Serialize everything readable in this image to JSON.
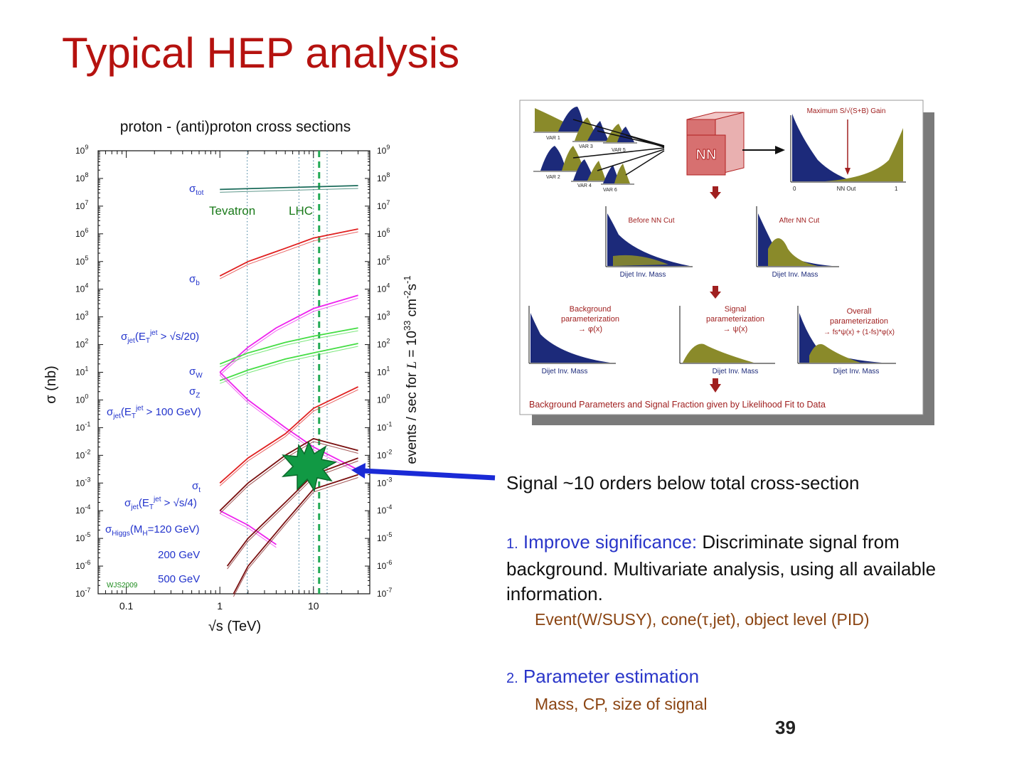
{
  "slide": {
    "title": "Typical HEP analysis",
    "page_number": "39"
  },
  "chart_data": {
    "type": "line",
    "title": "proton - (anti)proton cross sections",
    "xlabel": "√s (TeV)",
    "ylabel_left": "σ (nb)",
    "ylabel_right": "events / sec for L = 10^33 cm^-2 s^-1",
    "x_scale": "log",
    "y_scale": "log",
    "xlim": [
      0.05,
      40
    ],
    "ylim": [
      1e-07,
      1000000000.0
    ],
    "x_ticks": [
      "0.1",
      "1",
      "10"
    ],
    "y_ticks_left": [
      "10^9",
      "10^8",
      "10^7",
      "10^6",
      "10^5",
      "10^4",
      "10^3",
      "10^2",
      "10^1",
      "10^0",
      "10^-1",
      "10^-2",
      "10^-3",
      "10^-4",
      "10^-5",
      "10^-6",
      "10^-7"
    ],
    "y_ticks_right": [
      "10^9",
      "10^8",
      "10^7",
      "10^6",
      "10^5",
      "10^4",
      "10^3",
      "10^2",
      "10^1",
      "10^0",
      "10^-1",
      "10^-2",
      "10^-3",
      "10^-4",
      "10^-5",
      "10^-6",
      "10^-7"
    ],
    "region_labels": [
      "Tevatron",
      "LHC"
    ],
    "credit": "WJS2009",
    "series": [
      {
        "name": "σtot",
        "color": "#1a6b5a",
        "x": [
          1,
          30
        ],
        "y": [
          40000000.0,
          55000000.0
        ]
      },
      {
        "name": "σb",
        "color": "#e02020",
        "x": [
          1,
          2,
          5,
          10,
          30
        ],
        "y": [
          30000.0,
          100000.0,
          300000.0,
          700000.0,
          1500000.0
        ]
      },
      {
        "name": "σjet(ETjet > √s/20)",
        "color": "#ee22ee",
        "x": [
          1,
          2,
          4,
          10,
          30
        ],
        "y": [
          10.0,
          80.0,
          400.0,
          2000.0,
          6000.0
        ]
      },
      {
        "name": "σW",
        "color": "#44dd44",
        "x": [
          1,
          2,
          5,
          10,
          30
        ],
        "y": [
          20.0,
          50.0,
          120.0,
          200.0,
          400.0
        ]
      },
      {
        "name": "σZ",
        "color": "#44dd44",
        "x": [
          1,
          2,
          5,
          10,
          30
        ],
        "y": [
          5.0,
          12.0,
          30.0,
          50.0,
          110.0
        ]
      },
      {
        "name": "σjet(ETjet > 100 GeV)",
        "color": "#ee22ee",
        "x": [
          1,
          2,
          5,
          10,
          30
        ],
        "y": [
          10.0,
          1.0,
          0.1,
          0.02,
          0.003
        ]
      },
      {
        "name": "σt",
        "color": "#e02020",
        "x": [
          1,
          2,
          5,
          10,
          30
        ],
        "y": [
          0.001,
          0.008,
          0.06,
          0.5,
          3.0
        ]
      },
      {
        "name": "σjet(ETjet > √s/4)",
        "color": "#ee22ee",
        "x": [
          1,
          2,
          4
        ],
        "y": [
          0.0001,
          3e-05,
          6e-06
        ]
      },
      {
        "name": "σHiggs(MH=120 GeV)",
        "color": "#7a1010",
        "x": [
          1,
          2,
          5,
          10,
          30
        ],
        "y": [
          0.0001,
          0.001,
          0.01,
          0.04,
          0.015
        ]
      },
      {
        "name": "200 GeV",
        "color": "#7a1010",
        "x": [
          1.2,
          2,
          5,
          10,
          30
        ],
        "y": [
          1e-06,
          1e-05,
          0.0002,
          0.002,
          0.008
        ]
      },
      {
        "name": "500 GeV",
        "color": "#7a1010",
        "x": [
          1.4,
          2,
          5,
          10,
          30
        ],
        "y": [
          1e-07,
          1e-06,
          4e-05,
          0.0006,
          0.002
        ]
      }
    ],
    "labels": {
      "sigma_tot": "σtot",
      "sigma_b": "σb",
      "sigma_jet_sqrt20": "σjet(ETjet > √s/20)",
      "sigma_W": "σW",
      "sigma_Z": "σZ",
      "sigma_jet_100": "σjet(ETjet > 100 GeV)",
      "sigma_t": "σt",
      "sigma_jet_sqrt4": "σjet(ETjet > √s/4)",
      "sigma_higgs": "σHiggs(MH=120 GeV)",
      "higgs_200": "200 GeV",
      "higgs_500": "500 GeV"
    }
  },
  "nn_diagram": {
    "var_labels": [
      "VAR 1",
      "VAR 2",
      "VAR 3",
      "VAR 4",
      "VAR 5",
      "VAR 6"
    ],
    "nn_box": "NN",
    "gain_title": "Maximum S/√(S+B) Gain",
    "nn_out_axis": [
      "0",
      "NN Out",
      "1"
    ],
    "before_cut": "Before NN Cut",
    "after_cut": "After NN Cut",
    "dijet_label": "Dijet Inv. Mass",
    "bkg_param": [
      "Background",
      "parameterization",
      "→ φ(x)"
    ],
    "sig_param": [
      "Signal",
      "parameterization",
      "→ ψ(x)"
    ],
    "overall_param": [
      "Overall",
      "parameterization",
      "→ fs*ψ(x) + (1-fs)*φ(x)"
    ],
    "footer": "Background Parameters and Signal Fraction given by Likelihood Fit to Data",
    "colors": {
      "background": "#1c2a7a",
      "signal": "#8a8a2a",
      "accent": "#b22020"
    }
  },
  "text_block": {
    "signal_line": "Signal ~10 orders below total cross-section",
    "items": [
      {
        "number": "1.",
        "highlight": "Improve significance:",
        "text": " Discriminate signal from background. Multivariate analysis, using all available information.",
        "sub": "Event(W/SUSY), cone(τ,jet), object level (PID)"
      },
      {
        "number": "2.",
        "highlight": "Parameter estimation",
        "text": "",
        "sub": "Mass, CP, size of signal"
      }
    ]
  }
}
